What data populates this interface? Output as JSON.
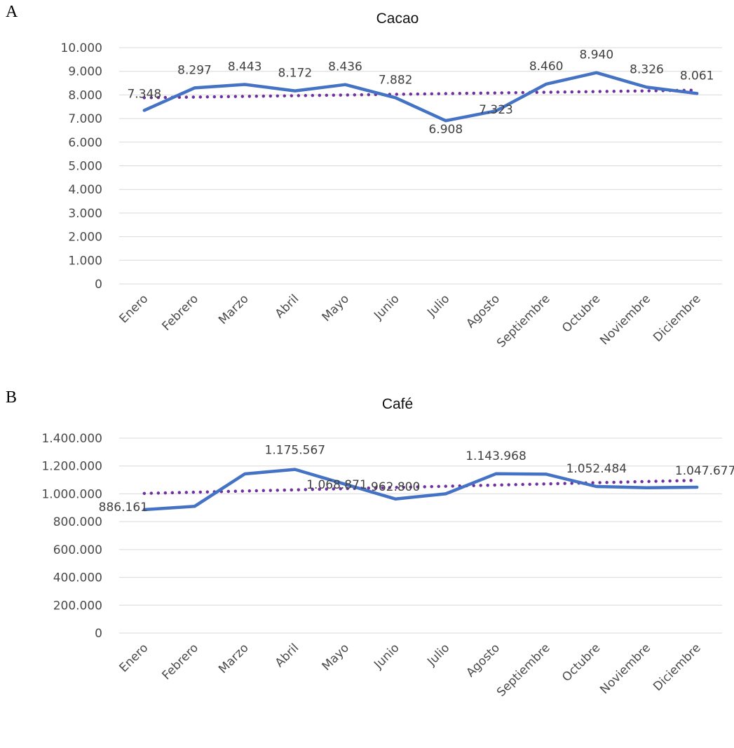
{
  "panels": [
    {
      "letter": "A"
    },
    {
      "letter": "B"
    }
  ],
  "colors": {
    "series_line": "#4472c4",
    "trend_line": "#7030a0"
  },
  "chart_data": [
    {
      "type": "line",
      "title": "Cacao",
      "xlabel": "",
      "ylabel": "",
      "categories": [
        "Enero",
        "Febrero",
        "Marzo",
        "Abril",
        "Mayo",
        "Junio",
        "Julio",
        "Agosto",
        "Septiembre",
        "Octubre",
        "Noviembre",
        "Diciembre"
      ],
      "series": [
        {
          "values": [
            7348,
            8297,
            8443,
            8172,
            8436,
            7882,
            6908,
            7323,
            8460,
            8940,
            8326,
            8061
          ]
        }
      ],
      "data_labels": [
        "7.348",
        "8.297",
        "8.443",
        "8.172",
        "8.436",
        "7.882",
        "6.908",
        "7.323",
        "8.460",
        "8.940",
        "8.326",
        "8.061"
      ],
      "trendline": {
        "style": "dotted",
        "type": "linear",
        "start": 7880,
        "end": 8200
      },
      "ylim": [
        0,
        10000
      ],
      "yticks": [
        0,
        1000,
        2000,
        3000,
        4000,
        5000,
        6000,
        7000,
        8000,
        9000,
        10000
      ],
      "ytick_labels": [
        "0",
        "1.000",
        "2.000",
        "3.000",
        "4.000",
        "5.000",
        "6.000",
        "7.000",
        "8.000",
        "9.000",
        "10.000"
      ],
      "grid": true,
      "legend": "none"
    },
    {
      "type": "line",
      "title": "Café",
      "xlabel": "",
      "ylabel": "",
      "categories": [
        "Enero",
        "Febrero",
        "Marzo",
        "Abril",
        "Mayo",
        "Junio",
        "Julio",
        "Agosto",
        "Septiembre",
        "Octubre",
        "Noviembre",
        "Diciembre"
      ],
      "series": [
        {
          "values": [
            886161,
            910000,
            1143000,
            1175567,
            1068871,
            962800,
            1000000,
            1143968,
            1141000,
            1052484,
            1044000,
            1047677
          ]
        }
      ],
      "data_labels": [
        "886.161",
        "",
        "",
        "1.175.567",
        "1.068.871",
        "962.800",
        "",
        "1.143.968",
        "",
        "1.052.484",
        "",
        "1.047.677"
      ],
      "trendline": {
        "style": "dotted",
        "type": "linear",
        "start": 1003000,
        "end": 1097000
      },
      "ylim": [
        0,
        1400000
      ],
      "yticks": [
        0,
        200000,
        400000,
        600000,
        800000,
        1000000,
        1200000,
        1400000
      ],
      "ytick_labels": [
        "0",
        "200.000",
        "400.000",
        "600.000",
        "800.000",
        "1.000.000",
        "1.200.000",
        "1.400.000"
      ],
      "grid": true,
      "legend": "none"
    }
  ]
}
